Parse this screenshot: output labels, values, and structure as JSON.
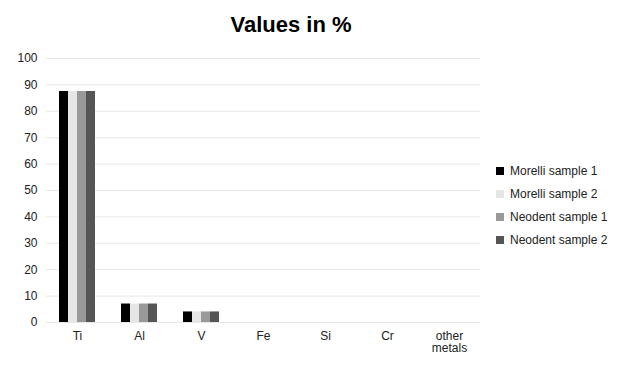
{
  "chart_data": {
    "type": "bar",
    "title": "Values in %",
    "categories": [
      "Ti",
      "Al",
      "V",
      "Fe",
      "Si",
      "Cr",
      "other metals"
    ],
    "series": [
      {
        "name": "Morelli sample 1",
        "color": "#000000",
        "values": [
          87.5,
          7,
          4,
          0,
          0,
          0,
          0
        ]
      },
      {
        "name": "Morelli sample 2",
        "color": "#e6e6e6",
        "values": [
          87.5,
          7,
          4,
          0,
          0,
          0,
          0
        ]
      },
      {
        "name": "Neodent sample 1",
        "color": "#999999",
        "values": [
          87.5,
          7,
          4,
          0,
          0,
          0,
          0
        ]
      },
      {
        "name": "Neodent sample 2",
        "color": "#555555",
        "values": [
          87.5,
          7,
          4,
          0,
          0,
          0,
          0
        ]
      }
    ],
    "ylim": [
      0,
      100
    ],
    "yticks": [
      0,
      10,
      20,
      30,
      40,
      50,
      60,
      70,
      80,
      90,
      100
    ],
    "grid": true,
    "legend": "right"
  }
}
